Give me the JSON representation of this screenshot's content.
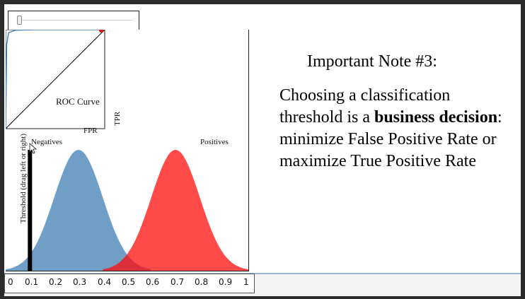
{
  "slider": {
    "name": "threshold-slider"
  },
  "roc": {
    "title": "ROC Curve",
    "xlabel": "FPR",
    "ylabel": "TPR"
  },
  "distributions": {
    "negatives_label": "Negatives",
    "positives_label": "Positives",
    "threshold_label": "Threshold (drag left or right)",
    "negative_color": "#6f9ec7",
    "positive_color": "#ff3b3b",
    "overlap_color": "#d62b3b",
    "threshold_value": 0.1
  },
  "axis": {
    "ticks": [
      "0",
      "0.1",
      "0.2",
      "0.3",
      "0.4",
      "0.5",
      "0.6",
      "0.7",
      "0.8",
      "0.9",
      "1"
    ]
  },
  "note": {
    "title": "Important Note #3:",
    "body_part1": "Choosing a classification threshold is a ",
    "body_bold": "business decision",
    "body_part2": ": minimize False Positive Rate or maximize True Positive Rate"
  },
  "chart_data": [
    {
      "type": "line",
      "title": "ROC Curve",
      "xlabel": "FPR",
      "ylabel": "TPR",
      "series": [
        {
          "x": [
            0,
            0.01,
            0.03,
            0.1,
            0.3,
            1.0
          ],
          "y": [
            0,
            0.85,
            0.97,
            0.995,
            1.0,
            1.0
          ]
        }
      ],
      "xlim": [
        0,
        1
      ],
      "ylim": [
        0,
        1
      ]
    },
    {
      "type": "area",
      "categories": [
        "Negatives",
        "Positives"
      ],
      "series": [
        {
          "name": "Negatives",
          "mean": 0.3,
          "sd": 0.1
        },
        {
          "name": "Positives",
          "mean": 0.7,
          "sd": 0.1
        }
      ],
      "xlim": [
        0,
        1
      ]
    }
  ]
}
